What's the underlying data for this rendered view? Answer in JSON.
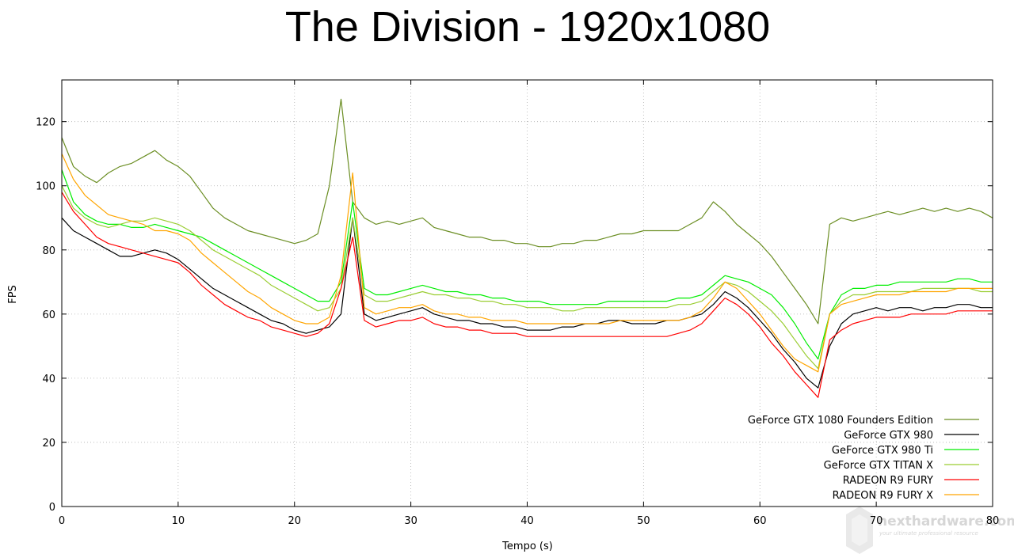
{
  "chart_data": {
    "type": "line",
    "title": "The Division - 1920x1080",
    "xlabel": "Tempo (s)",
    "ylabel": "FPS",
    "xlim": [
      0,
      80
    ],
    "ylim": [
      0,
      133
    ],
    "x_ticks": [
      0,
      10,
      20,
      30,
      40,
      50,
      60,
      70,
      80
    ],
    "y_ticks": [
      0,
      20,
      40,
      60,
      80,
      100,
      120
    ],
    "grid": true,
    "legend_position": "bottom-right",
    "x": [
      0,
      1,
      2,
      3,
      4,
      5,
      6,
      7,
      8,
      9,
      10,
      11,
      12,
      13,
      14,
      15,
      16,
      17,
      18,
      19,
      20,
      21,
      22,
      23,
      24,
      25,
      26,
      27,
      28,
      29,
      30,
      31,
      32,
      33,
      34,
      35,
      36,
      37,
      38,
      39,
      40,
      41,
      42,
      43,
      44,
      45,
      46,
      47,
      48,
      49,
      50,
      51,
      52,
      53,
      54,
      55,
      56,
      57,
      58,
      59,
      60,
      61,
      62,
      63,
      64,
      65,
      66,
      67,
      68,
      69,
      70,
      71,
      72,
      73,
      74,
      75,
      76,
      77,
      78,
      79,
      80
    ],
    "series": [
      {
        "name": "GeForce GTX 1080 Founders Edition",
        "color": "#6b8e23",
        "values": [
          115,
          106,
          103,
          101,
          104,
          106,
          107,
          109,
          111,
          108,
          106,
          103,
          98,
          93,
          90,
          88,
          86,
          85,
          84,
          83,
          82,
          83,
          85,
          100,
          127,
          95,
          90,
          88,
          89,
          88,
          89,
          90,
          87,
          86,
          85,
          84,
          84,
          83,
          83,
          82,
          82,
          81,
          81,
          82,
          82,
          83,
          83,
          84,
          85,
          85,
          86,
          86,
          86,
          86,
          88,
          90,
          95,
          92,
          88,
          85,
          82,
          78,
          73,
          68,
          63,
          57,
          88,
          90,
          89,
          90,
          91,
          92,
          91,
          92,
          93,
          92,
          93,
          92,
          93,
          92,
          90
        ]
      },
      {
        "name": "GeForce GTX 980",
        "color": "#000000",
        "values": [
          90,
          86,
          84,
          82,
          80,
          78,
          78,
          79,
          80,
          79,
          77,
          74,
          71,
          68,
          66,
          64,
          62,
          60,
          58,
          57,
          55,
          54,
          55,
          56,
          60,
          90,
          60,
          58,
          59,
          60,
          61,
          62,
          60,
          59,
          58,
          58,
          57,
          57,
          56,
          56,
          55,
          55,
          55,
          56,
          56,
          57,
          57,
          58,
          58,
          57,
          57,
          57,
          58,
          58,
          59,
          60,
          63,
          67,
          65,
          62,
          58,
          54,
          49,
          45,
          40,
          37,
          50,
          57,
          60,
          61,
          62,
          61,
          62,
          62,
          61,
          62,
          62,
          63,
          63,
          62,
          62
        ]
      },
      {
        "name": "GeForce GTX 980 Ti",
        "color": "#00ee00",
        "values": [
          105,
          95,
          91,
          89,
          88,
          88,
          87,
          87,
          88,
          87,
          86,
          85,
          84,
          82,
          80,
          78,
          76,
          74,
          72,
          70,
          68,
          66,
          64,
          64,
          70,
          95,
          68,
          66,
          66,
          67,
          68,
          69,
          68,
          67,
          67,
          66,
          66,
          65,
          65,
          64,
          64,
          64,
          63,
          63,
          63,
          63,
          63,
          64,
          64,
          64,
          64,
          64,
          64,
          65,
          65,
          66,
          69,
          72,
          71,
          70,
          68,
          66,
          62,
          57,
          51,
          46,
          60,
          66,
          68,
          68,
          69,
          69,
          70,
          70,
          70,
          70,
          70,
          71,
          71,
          70,
          70
        ]
      },
      {
        "name": "GeForce GTX TITAN X",
        "color": "#9acd32",
        "values": [
          100,
          93,
          90,
          88,
          87,
          88,
          89,
          89,
          90,
          89,
          88,
          86,
          83,
          80,
          78,
          76,
          74,
          72,
          69,
          67,
          65,
          63,
          61,
          62,
          68,
          90,
          66,
          64,
          64,
          65,
          66,
          67,
          66,
          66,
          65,
          65,
          64,
          64,
          63,
          63,
          62,
          62,
          62,
          61,
          61,
          62,
          62,
          62,
          62,
          62,
          62,
          62,
          62,
          63,
          63,
          64,
          67,
          70,
          69,
          67,
          64,
          61,
          57,
          52,
          47,
          43,
          60,
          64,
          66,
          66,
          67,
          67,
          67,
          67,
          68,
          68,
          68,
          68,
          68,
          67,
          67
        ]
      },
      {
        "name": "RADEON R9 FURY",
        "color": "#ff0000",
        "values": [
          98,
          92,
          88,
          84,
          82,
          81,
          80,
          79,
          78,
          77,
          76,
          73,
          69,
          66,
          63,
          61,
          59,
          58,
          56,
          55,
          54,
          53,
          54,
          57,
          68,
          84,
          58,
          56,
          57,
          58,
          58,
          59,
          57,
          56,
          56,
          55,
          55,
          54,
          54,
          54,
          53,
          53,
          53,
          53,
          53,
          53,
          53,
          53,
          53,
          53,
          53,
          53,
          53,
          54,
          55,
          57,
          61,
          65,
          63,
          60,
          56,
          51,
          47,
          42,
          38,
          34,
          52,
          55,
          57,
          58,
          59,
          59,
          59,
          60,
          60,
          60,
          60,
          61,
          61,
          61,
          61
        ]
      },
      {
        "name": "RADEON R9 FURY X",
        "color": "#ffa500",
        "values": [
          110,
          102,
          97,
          94,
          91,
          90,
          89,
          88,
          86,
          86,
          85,
          83,
          79,
          76,
          73,
          70,
          67,
          65,
          62,
          60,
          58,
          57,
          57,
          59,
          72,
          104,
          62,
          60,
          61,
          62,
          62,
          63,
          61,
          60,
          60,
          59,
          59,
          58,
          58,
          58,
          57,
          57,
          57,
          57,
          57,
          57,
          57,
          57,
          58,
          58,
          58,
          58,
          58,
          58,
          59,
          61,
          65,
          70,
          68,
          64,
          60,
          55,
          50,
          46,
          44,
          42,
          60,
          63,
          64,
          65,
          66,
          66,
          66,
          67,
          67,
          67,
          67,
          68,
          68,
          68,
          68
        ]
      }
    ]
  },
  "watermark": {
    "brand": "nexthardware.com",
    "tagline": "your ultimate professional resource"
  }
}
